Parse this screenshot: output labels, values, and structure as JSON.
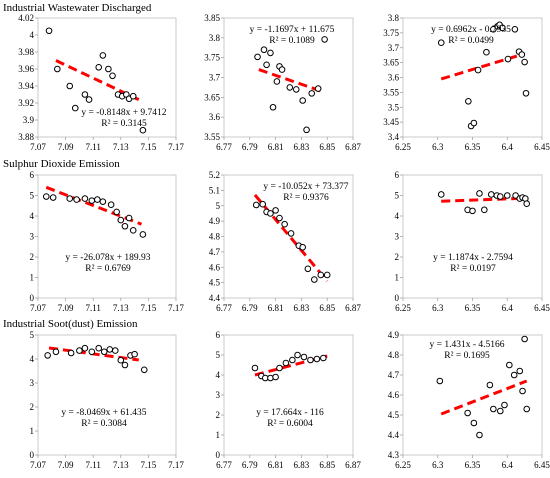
{
  "rows": [
    {
      "title": "Industrial Wastewater Discharged"
    },
    {
      "title": "Sulphur Dioxide Emission"
    },
    {
      "title": "Industrial Soot(dust) Emission"
    }
  ],
  "style": {
    "point_color": "#000000",
    "trend_color": "#ff0000"
  },
  "chart_data": [
    {
      "type": "scatter",
      "row": 0,
      "col": 0,
      "xlim": [
        7.07,
        7.17
      ],
      "xticks": [
        "7.07",
        "7.09",
        "7.11",
        "7.13",
        "7.15",
        "7.17"
      ],
      "ylim": [
        3.88,
        4.02
      ],
      "yticks": [
        "3.88",
        "3.9",
        "3.92",
        "3.94",
        "3.96",
        "3.98",
        "4",
        "4.02"
      ],
      "equation": "y = -0.8148x + 9.7412",
      "r2": "R² = 0.3145",
      "trend": [
        [
          7.083,
          3.97
        ],
        [
          7.143,
          3.924
        ]
      ],
      "x": [
        7.078,
        7.084,
        7.093,
        7.097,
        7.104,
        7.107,
        7.114,
        7.117,
        7.121,
        7.124,
        7.128,
        7.131,
        7.134,
        7.136,
        7.139,
        7.146
      ],
      "y": [
        4.005,
        3.96,
        3.94,
        3.914,
        3.93,
        3.924,
        3.962,
        3.976,
        3.96,
        3.952,
        3.93,
        3.928,
        3.93,
        3.925,
        3.928,
        3.888
      ]
    },
    {
      "type": "scatter",
      "row": 0,
      "col": 1,
      "xlim": [
        6.77,
        6.87
      ],
      "xticks": [
        "6.77",
        "6.79",
        "6.81",
        "6.83",
        "6.85",
        "6.87"
      ],
      "ylim": [
        3.55,
        3.85
      ],
      "yticks": [
        "3.55",
        "3.6",
        "3.65",
        "3.7",
        "3.75",
        "3.8",
        "3.85"
      ],
      "equation": "y = -1.1697x + 11.675",
      "r2": "R² = 0.1089",
      "trend": [
        [
          6.797,
          3.72
        ],
        [
          6.846,
          3.665
        ]
      ],
      "x": [
        6.796,
        6.801,
        6.803,
        6.806,
        6.808,
        6.811,
        6.813,
        6.815,
        6.821,
        6.826,
        6.831,
        6.834,
        6.838,
        6.843,
        6.848
      ],
      "y": [
        3.752,
        3.77,
        3.732,
        3.762,
        3.625,
        3.69,
        3.728,
        3.72,
        3.675,
        3.67,
        3.642,
        3.568,
        3.66,
        3.672,
        3.796
      ]
    },
    {
      "type": "scatter",
      "row": 0,
      "col": 2,
      "xlim": [
        6.25,
        6.45
      ],
      "xticks": [
        "6.25",
        "6.3",
        "6.35",
        "6.4",
        "6.45"
      ],
      "ylim": [
        3.4,
        3.8
      ],
      "yticks": [
        "3.4",
        "3.45",
        "3.5",
        "3.55",
        "3.6",
        "3.65",
        "3.7",
        "3.75",
        "3.8"
      ],
      "equation": "y = 0.6962x - 0.7935",
      "r2": "R² = 0.0499",
      "trend": [
        [
          6.305,
          3.595
        ],
        [
          6.425,
          3.68
        ]
      ],
      "x": [
        6.305,
        6.344,
        6.348,
        6.352,
        6.358,
        6.37,
        6.38,
        6.386,
        6.389,
        6.393,
        6.401,
        6.411,
        6.417,
        6.421,
        6.425,
        6.427
      ],
      "y": [
        3.717,
        3.52,
        3.437,
        3.447,
        3.625,
        3.685,
        3.762,
        3.772,
        3.777,
        3.767,
        3.662,
        3.762,
        3.687,
        3.677,
        3.652,
        3.547
      ]
    },
    {
      "type": "scatter",
      "row": 1,
      "col": 0,
      "xlim": [
        7.07,
        7.17
      ],
      "xticks": [
        "7.07",
        "7.09",
        "7.11",
        "7.13",
        "7.15",
        "7.17"
      ],
      "ylim": [
        0,
        6
      ],
      "yticks": [
        "0",
        "1",
        "2",
        "3",
        "4",
        "5",
        "6"
      ],
      "equation": "y = -26.078x + 189.93",
      "r2": "R² = 0.6769",
      "trend": [
        [
          7.076,
          5.4
        ],
        [
          7.145,
          3.6
        ]
      ],
      "x": [
        7.076,
        7.081,
        7.093,
        7.098,
        7.104,
        7.109,
        7.113,
        7.117,
        7.123,
        7.127,
        7.13,
        7.133,
        7.136,
        7.139,
        7.146
      ],
      "y": [
        4.95,
        4.9,
        4.85,
        4.8,
        4.85,
        4.75,
        4.8,
        4.7,
        4.55,
        4.2,
        3.8,
        3.5,
        3.9,
        3.3,
        3.1
      ]
    },
    {
      "type": "scatter",
      "row": 1,
      "col": 1,
      "xlim": [
        6.77,
        6.87
      ],
      "xticks": [
        "6.77",
        "6.79",
        "6.81",
        "6.83",
        "6.85",
        "6.87"
      ],
      "ylim": [
        4.4,
        5.2
      ],
      "yticks": [
        "4.4",
        "4.5",
        "4.6",
        "4.7",
        "4.8",
        "4.9",
        "5",
        "5.1",
        "5.2"
      ],
      "equation": "y = -10.052x + 73.377",
      "r2": "R² = 0.9376",
      "trend": [
        [
          6.794,
          5.07
        ],
        [
          6.85,
          4.51
        ]
      ],
      "x": [
        6.795,
        6.8,
        6.803,
        6.806,
        6.81,
        6.813,
        6.817,
        6.822,
        6.828,
        6.831,
        6.835,
        6.84,
        6.845,
        6.85
      ],
      "y": [
        5.005,
        5.01,
        4.96,
        4.95,
        4.97,
        4.92,
        4.88,
        4.82,
        4.74,
        4.73,
        4.59,
        4.52,
        4.55,
        4.55
      ]
    },
    {
      "type": "scatter",
      "row": 1,
      "col": 2,
      "xlim": [
        6.25,
        6.45
      ],
      "xticks": [
        "6.25",
        "6.3",
        "6.35",
        "6.4",
        "6.45"
      ],
      "ylim": [
        0,
        6
      ],
      "yticks": [
        "0",
        "1",
        "2",
        "3",
        "4",
        "5",
        "6"
      ],
      "equation": "y = 1.1874x - 2.7594",
      "r2": "R² = 0.0197",
      "trend": [
        [
          6.305,
          4.72
        ],
        [
          6.428,
          4.87
        ]
      ],
      "x": [
        6.305,
        6.343,
        6.35,
        6.36,
        6.367,
        6.377,
        6.385,
        6.39,
        6.4,
        6.412,
        6.418,
        6.422,
        6.426,
        6.428
      ],
      "y": [
        5.05,
        4.3,
        4.25,
        5.1,
        4.3,
        5.05,
        5.0,
        4.95,
        5.0,
        5.0,
        4.85,
        4.9,
        4.85,
        4.6
      ]
    },
    {
      "type": "scatter",
      "row": 2,
      "col": 0,
      "xlim": [
        7.07,
        7.17
      ],
      "xticks": [
        "7.07",
        "7.09",
        "7.11",
        "7.13",
        "7.15",
        "7.17"
      ],
      "ylim": [
        0,
        5
      ],
      "yticks": [
        "0",
        "1",
        "2",
        "3",
        "4",
        "5"
      ],
      "equation": "y = -8.0469x + 61.435",
      "r2": "R² = 0.3084",
      "trend": [
        [
          7.078,
          4.46
        ],
        [
          7.143,
          3.96
        ]
      ],
      "x": [
        7.077,
        7.083,
        7.094,
        7.1,
        7.104,
        7.109,
        7.114,
        7.118,
        7.122,
        7.126,
        7.13,
        7.133,
        7.137,
        7.14,
        7.147
      ],
      "y": [
        4.15,
        4.3,
        4.25,
        4.35,
        4.45,
        4.3,
        4.45,
        4.3,
        4.4,
        4.35,
        3.95,
        3.75,
        4.15,
        4.2,
        3.55
      ]
    },
    {
      "type": "scatter",
      "row": 2,
      "col": 1,
      "xlim": [
        6.77,
        6.87
      ],
      "xticks": [
        "6.77",
        "6.79",
        "6.81",
        "6.83",
        "6.85",
        "6.87"
      ],
      "ylim": [
        0,
        6
      ],
      "yticks": [
        "0",
        "1",
        "2",
        "3",
        "4",
        "5",
        "6"
      ],
      "equation": "y = 17.664x - 116",
      "r2": "R² = 0.6004",
      "trend": [
        [
          6.794,
          4.0
        ],
        [
          6.85,
          4.95
        ]
      ],
      "x": [
        6.794,
        6.799,
        6.802,
        6.806,
        6.81,
        6.813,
        6.818,
        6.823,
        6.827,
        6.832,
        6.837,
        6.842,
        6.847
      ],
      "y": [
        4.35,
        3.95,
        3.85,
        3.85,
        3.9,
        4.35,
        4.6,
        4.75,
        5.0,
        4.9,
        4.75,
        4.8,
        4.85
      ]
    },
    {
      "type": "scatter",
      "row": 2,
      "col": 2,
      "xlim": [
        6.25,
        6.45
      ],
      "xticks": [
        "6.25",
        "6.3",
        "6.35",
        "6.4",
        "6.45"
      ],
      "ylim": [
        4.3,
        4.9
      ],
      "yticks": [
        "4.3",
        "4.4",
        "4.5",
        "4.6",
        "4.7",
        "4.8",
        "4.9"
      ],
      "equation": "y = 1.431x - 4.5166",
      "r2": "R² = 0.1695",
      "trend": [
        [
          6.305,
          4.505
        ],
        [
          6.428,
          4.67
        ]
      ],
      "x": [
        6.303,
        6.343,
        6.352,
        6.36,
        6.375,
        6.38,
        6.39,
        6.396,
        6.403,
        6.41,
        6.418,
        6.422,
        6.425,
        6.428
      ],
      "y": [
        4.67,
        4.51,
        4.46,
        4.4,
        4.65,
        4.53,
        4.52,
        4.55,
        4.75,
        4.7,
        4.72,
        4.62,
        4.88,
        4.53
      ]
    }
  ]
}
